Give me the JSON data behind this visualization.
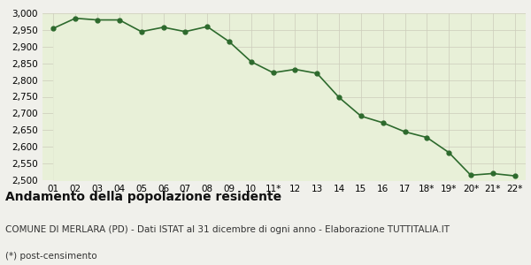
{
  "x_labels": [
    "01",
    "02",
    "03",
    "04",
    "05",
    "06",
    "07",
    "08",
    "09",
    "10",
    "11*",
    "12",
    "13",
    "14",
    "15",
    "16",
    "17",
    "18*",
    "19*",
    "20*",
    "21*",
    "22*"
  ],
  "y_values": [
    2955,
    2985,
    2980,
    2980,
    2945,
    2958,
    2945,
    2960,
    2915,
    2855,
    2822,
    2832,
    2820,
    2748,
    2692,
    2672,
    2645,
    2628,
    2583,
    2515,
    2520,
    2513
  ],
  "line_color": "#2d6a2d",
  "fill_color": "#e8f0d8",
  "marker_color": "#2d6a2d",
  "background_color": "#f0f0eb",
  "grid_color": "#ccccbb",
  "ylim": [
    2500,
    3000
  ],
  "yticks": [
    2500,
    2550,
    2600,
    2650,
    2700,
    2750,
    2800,
    2850,
    2900,
    2950,
    3000
  ],
  "title": "Andamento della popolazione residente",
  "subtitle": "COMUNE DI MERLARA (PD) - Dati ISTAT al 31 dicembre di ogni anno - Elaborazione TUTTITALIA.IT",
  "footnote": "(*) post-censimento",
  "title_fontsize": 10,
  "subtitle_fontsize": 7.5,
  "footnote_fontsize": 7.5,
  "axis_fontsize": 7.5
}
